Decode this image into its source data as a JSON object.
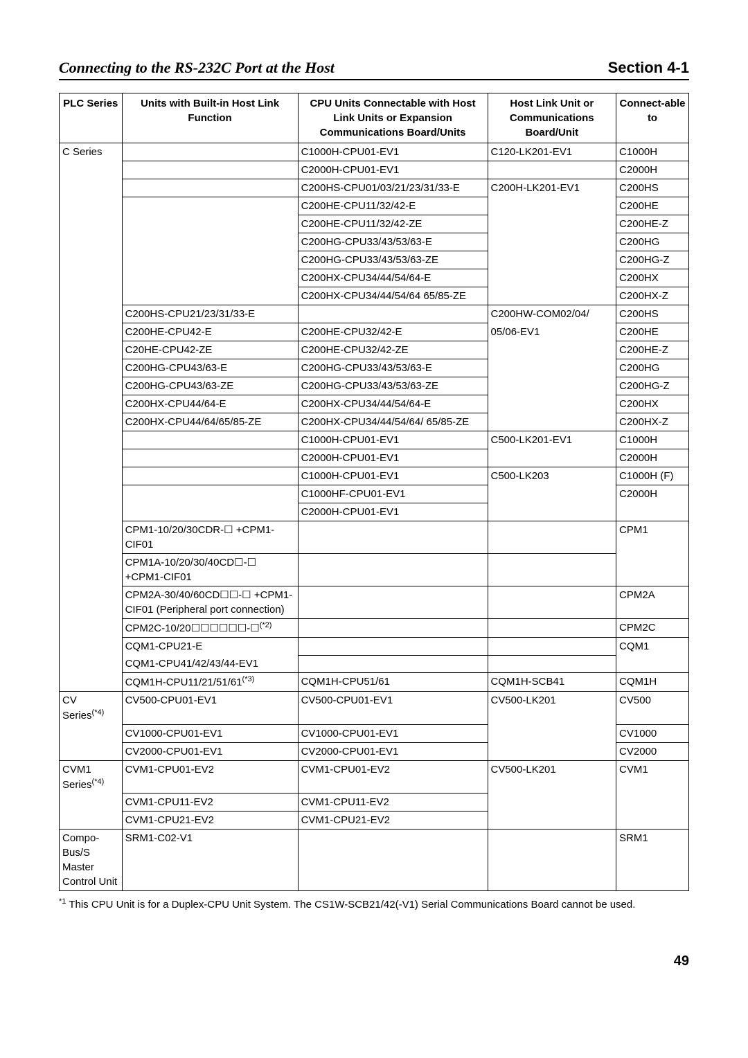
{
  "header": {
    "left": "Connecting to the RS-232C Port at the Host",
    "right": "Section 4-1"
  },
  "table": {
    "headers": {
      "plc": "PLC Series",
      "units": "Units with Built-in Host Link Function",
      "cpu": "CPU Units Connectable with Host Link Units or Expansion Communications Board/Units",
      "host": "Host Link Unit or Communications Board/Unit",
      "conn": "Connect-able to"
    },
    "rows": [
      {
        "plc": "C Series",
        "units": "",
        "cpu": "C1000H-CPU01-EV1",
        "host": "C120-LK201-EV1",
        "conn": "C1000H",
        "plc_nb": true
      },
      {
        "plc": "",
        "units": "",
        "cpu": "C2000H-CPU01-EV1",
        "host": "",
        "conn": "C2000H",
        "plc_ntb": true,
        "units_nt": true,
        "host_nt": true
      },
      {
        "plc": "",
        "units": "",
        "cpu": "C200HS-CPU01/03/21/23/31/33-E",
        "host": "C200H-LK201-EV1",
        "conn": "C200HS",
        "plc_ntb": true,
        "units_nt": true,
        "host_nb": true
      },
      {
        "plc": "",
        "units": "",
        "cpu": "C200HE-CPU11/32/42-E",
        "host": "",
        "conn": "C200HE",
        "plc_ntb": true,
        "units_ntb": true,
        "host_ntb": true,
        "cpu_nt": true
      },
      {
        "plc": "",
        "units": "",
        "cpu": "C200HE-CPU11/32/42-ZE",
        "host": "",
        "conn": "C200HE-Z",
        "plc_ntb": true,
        "units_ntb": true,
        "host_ntb": true,
        "cpu_nt": true
      },
      {
        "plc": "",
        "units": "",
        "cpu": "C200HG-CPU33/43/53/63-E",
        "host": "",
        "conn": "C200HG",
        "plc_ntb": true,
        "units_ntb": true,
        "host_ntb": true,
        "cpu_nt": true
      },
      {
        "plc": "",
        "units": "",
        "cpu": "C200HG-CPU33/43/53/63-ZE",
        "host": "",
        "conn": "C200HG-Z",
        "plc_ntb": true,
        "units_ntb": true,
        "host_ntb": true,
        "cpu_nt": true
      },
      {
        "plc": "",
        "units": "",
        "cpu": "C200HX-CPU34/44/54/64-E",
        "host": "",
        "conn": "C200HX",
        "plc_ntb": true,
        "units_ntb": true,
        "host_ntb": true,
        "cpu_nt": true
      },
      {
        "plc": "",
        "units": "",
        "cpu": "C200HX-CPU34/44/54/64 65/85-ZE",
        "host": "",
        "conn": "C200HX-Z",
        "plc_ntb": true,
        "units_ntb": true,
        "host_nt": true,
        "cpu_nt": true
      },
      {
        "plc": "",
        "units": "C200HS-CPU21/23/31/33-E",
        "cpu": "",
        "host": "C200HW-COM02/04/",
        "conn": "C200HS",
        "plc_ntb": true,
        "host_nb": true
      },
      {
        "plc": "",
        "units": "C200HE-CPU42-E",
        "cpu": "C200HE-CPU32/42-E",
        "host": "05/06-EV1",
        "conn": "C200HE",
        "plc_ntb": true,
        "host_ntb": true
      },
      {
        "plc": "",
        "units": "C20HE-CPU42-ZE",
        "cpu": "C200HE-CPU32/42-ZE",
        "host": "",
        "conn": "C200HE-Z",
        "plc_ntb": true,
        "host_ntb": true
      },
      {
        "plc": "",
        "units": "C200HG-CPU43/63-E",
        "cpu": "C200HG-CPU33/43/53/63-E",
        "host": "",
        "conn": "C200HG",
        "plc_ntb": true,
        "host_ntb": true
      },
      {
        "plc": "",
        "units": "C200HG-CPU43/63-ZE",
        "cpu": "C200HG-CPU33/43/53/63-ZE",
        "host": "",
        "conn": "C200HG-Z",
        "plc_ntb": true,
        "host_ntb": true
      },
      {
        "plc": "",
        "units": "C200HX-CPU44/64-E",
        "cpu": "C200HX-CPU34/44/54/64-E",
        "host": "",
        "conn": "C200HX",
        "plc_ntb": true,
        "host_ntb": true
      },
      {
        "plc": "",
        "units": "C200HX-CPU44/64/65/85-ZE",
        "cpu": "C200HX-CPU34/44/54/64/ 65/85-ZE",
        "host": "",
        "conn": "C200HX-Z",
        "plc_ntb": true,
        "host_nt": true
      },
      {
        "plc": "",
        "units": "",
        "cpu": "C1000H-CPU01-EV1",
        "host": "C500-LK201-EV1",
        "conn": "C1000H",
        "plc_ntb": true,
        "host_nb": true
      },
      {
        "plc": "",
        "units": "",
        "cpu": "C2000H-CPU01-EV1",
        "host": "",
        "conn": "C2000H",
        "plc_ntb": true,
        "units_nt": true,
        "host_nt": true
      },
      {
        "plc": "",
        "units": "",
        "cpu": "C1000H-CPU01-EV1",
        "host": "C500-LK203",
        "conn": "C1000H (F)",
        "plc_ntb": true,
        "host_nb": true
      },
      {
        "plc": "",
        "units": "",
        "cpu": "C1000HF-CPU01-EV1",
        "host": "",
        "conn": "C2000H",
        "plc_ntb": true,
        "units_ntb": true,
        "host_ntb": true,
        "cpu_nt": true,
        "conn_nb": true
      },
      {
        "plc": "",
        "units": "",
        "cpu": "C2000H-CPU01-EV1",
        "host": "",
        "conn": "",
        "plc_ntb": true,
        "units_nt": true,
        "host_nt": true,
        "cpu_nt": true,
        "conn_nt": true
      },
      {
        "plc": "",
        "units": "CPM1-10/20/30CDR-☐ +CPM1-CIF01",
        "cpu": "",
        "host": "",
        "conn": "CPM1",
        "plc_ntb": true,
        "conn_nb": true
      },
      {
        "plc": "",
        "units": "CPM1A-10/20/30/40CD☐-☐ +CPM1-CIF01",
        "cpu": "",
        "host": "",
        "conn": "",
        "plc_ntb": true,
        "cpu_nt": true,
        "host_nt": true,
        "conn_nt": true
      },
      {
        "plc": "",
        "units": "CPM2A-30/40/60CD☐☐-☐ +CPM1-CIF01 (Peripheral port connection)",
        "cpu": "",
        "host": "",
        "conn": "CPM2A",
        "plc_ntb": true,
        "cpu_nt": true,
        "host_nt": true
      },
      {
        "plc": "",
        "units": "CPM2C-10/20☐☐☐☐☐☐-☐",
        "units_sup": "(*2)",
        "cpu": "",
        "host": "",
        "conn": "CPM2C",
        "plc_ntb": true,
        "cpu_nt": true,
        "host_nt": true
      },
      {
        "plc": "",
        "units": "CQM1-CPU21-E",
        "cpu": "",
        "host": "",
        "conn": "CQM1",
        "plc_ntb": true,
        "cpu_nt": true,
        "host_nt": true,
        "units_nb": true,
        "conn_nb": true
      },
      {
        "plc": "",
        "units": "CQM1-CPU41/42/43/44-EV1",
        "cpu": "",
        "host": "",
        "conn": "",
        "plc_ntb": true,
        "cpu_nt": true,
        "host_nt": true,
        "units_nt": true,
        "conn_nt": true
      },
      {
        "plc": "",
        "units": "CQM1H-CPU11/21/51/61",
        "units_sup": "(*3)",
        "cpu": "CQM1H-CPU51/61",
        "host": "CQM1H-SCB41",
        "conn": "CQM1H",
        "plc_nt": true
      },
      {
        "plc": "CV Series",
        "plc_sup": "(*4)",
        "units": "CV500-CPU01-EV1",
        "cpu": "CV500-CPU01-EV1",
        "host": "CV500-LK201",
        "conn": "CV500",
        "plc_nb": true,
        "host_nb": true
      },
      {
        "plc": "",
        "units": "CV1000-CPU01-EV1",
        "cpu": "CV1000-CPU01-EV1",
        "host": "",
        "conn": "CV1000",
        "plc_ntb": true,
        "host_ntb": true
      },
      {
        "plc": "",
        "units": "CV2000-CPU01-EV1",
        "cpu": "CV2000-CPU01-EV1",
        "host": "",
        "conn": "CV2000",
        "plc_nt": true,
        "host_nt": true
      },
      {
        "plc": "CVM1 Series",
        "plc_sup": "(*4)",
        "units": "CVM1-CPU01-EV2",
        "cpu": "CVM1-CPU01-EV2",
        "host": "CV500-LK201",
        "conn": "CVM1",
        "plc_nb": true,
        "host_nb": true,
        "conn_nb": true
      },
      {
        "plc": "",
        "units": "CVM1-CPU11-EV2",
        "cpu": "CVM1-CPU11-EV2",
        "host": "",
        "conn": "",
        "plc_ntb": true,
        "host_ntb": true,
        "conn_ntb": true
      },
      {
        "plc": "",
        "units": "CVM1-CPU21-EV2",
        "cpu": "CVM1-CPU21-EV2",
        "host": "",
        "conn": "",
        "plc_nt": true,
        "host_nt": true,
        "conn_nt": true
      },
      {
        "plc": "Compo-Bus/S Master Control Unit",
        "units": "SRM1-C02-V1",
        "cpu": "",
        "host": "",
        "conn": "SRM1"
      }
    ]
  },
  "footnote": {
    "marker": "*1",
    "text": "This CPU Unit is for a Duplex-CPU Unit System. The CS1W-SCB21/42(-V1) Serial Communications Board cannot be used."
  },
  "page_number": "49"
}
